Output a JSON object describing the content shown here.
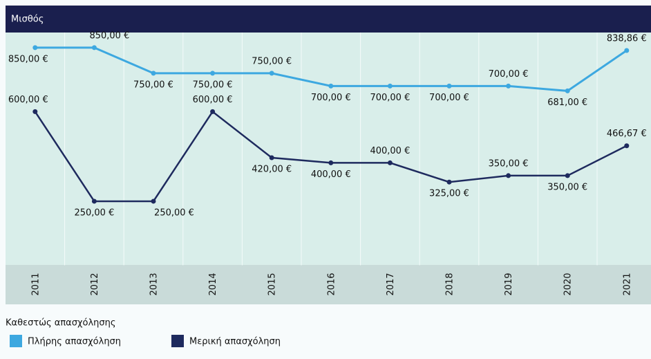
{
  "chart_data": {
    "type": "line",
    "title": "Μισθός",
    "categories": [
      "2011",
      "2012",
      "2013",
      "2014",
      "2015",
      "2016",
      "2017",
      "2018",
      "2019",
      "2020",
      "2021"
    ],
    "series": [
      {
        "name": "Πλήρης απασχόληση",
        "color": "#3da8e0",
        "values": [
          850,
          850,
          750,
          750,
          750,
          700,
          700,
          700,
          700,
          681,
          838.86
        ],
        "value_labels": [
          "850,00 €",
          "850,00 €",
          "750,00 €",
          "750,00 €",
          "750,00 €",
          "700,00 €",
          "700,00 €",
          "700,00 €",
          "700,00 €",
          "681,00 €",
          "838,86 €"
        ]
      },
      {
        "name": "Μερική απασχόληση",
        "color": "#1e2a5e",
        "values": [
          600,
          250,
          250,
          600,
          420,
          400,
          400,
          325,
          350,
          350,
          466.67
        ],
        "value_labels": [
          "600,00 €",
          "250,00 €",
          "250,00 €",
          "600,00 €",
          "420,00 €",
          "400,00 €",
          "400,00 €",
          "325,00 €",
          "350,00 €",
          "350,00 €",
          "466,67 €"
        ]
      }
    ],
    "legend_title": "Καθεστώς απασχόλησης",
    "ylim": [
      0,
      909
    ],
    "grid": true
  }
}
